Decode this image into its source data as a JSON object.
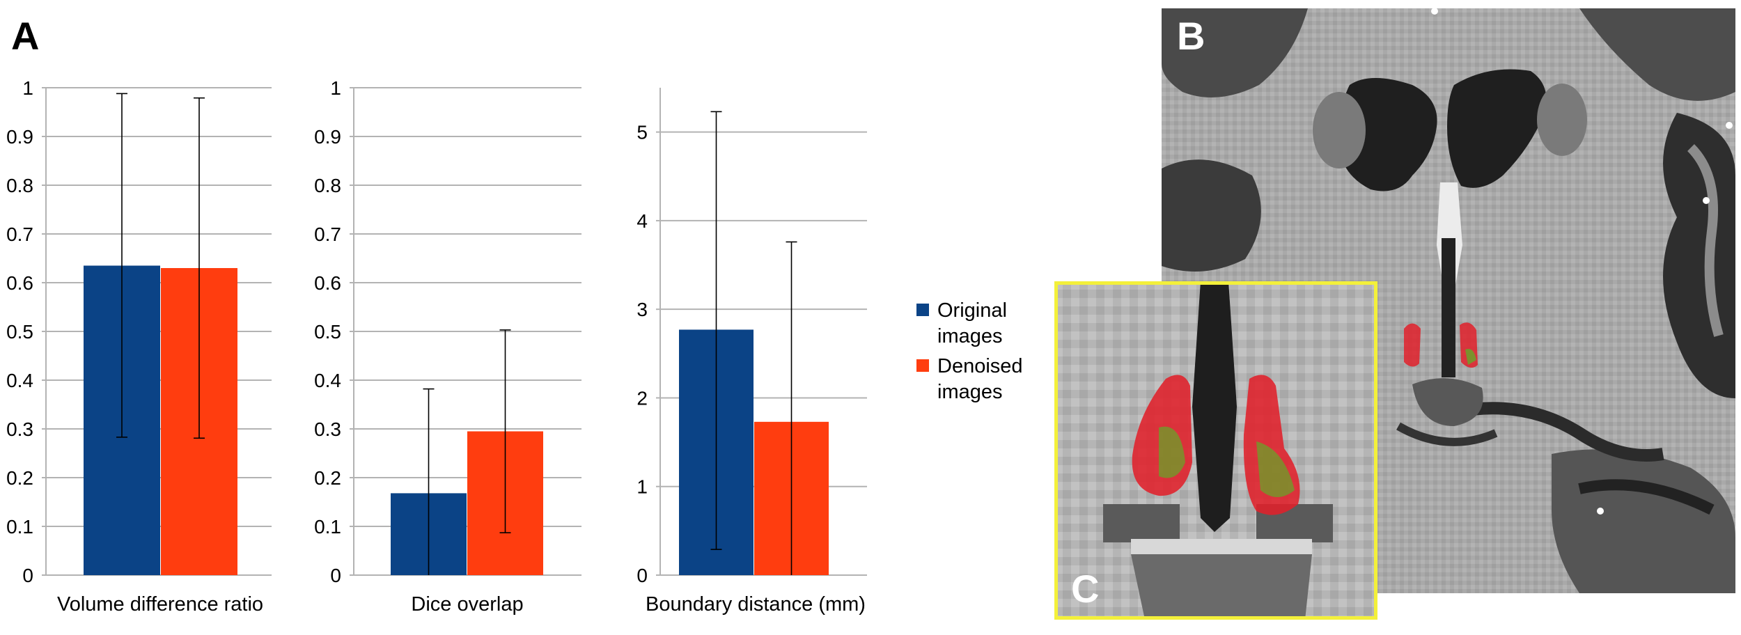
{
  "panels": {
    "a": "A",
    "b": "B",
    "c": "C"
  },
  "colors": {
    "original": "#0b4386",
    "denoised": "#ff3d0f",
    "grid": "#b3b3b3",
    "inset_border": "#f3f03a",
    "segmentation_red": "#e0202a",
    "segmentation_green": "#6aa22a"
  },
  "legend": [
    {
      "label": "Original images",
      "color": "#0b4386"
    },
    {
      "label": "Denoised images",
      "color": "#ff3d0f"
    }
  ],
  "chart_data": [
    {
      "type": "bar",
      "title": "",
      "xlabel": "Volume difference ratio",
      "ylabel": "",
      "ylim": [
        0,
        1
      ],
      "yticks": [
        "0",
        "0.1",
        "0.2",
        "0.3",
        "0.4",
        "0.5",
        "0.6",
        "0.7",
        "0.8",
        "0.9",
        "1"
      ],
      "grid": true,
      "series": [
        {
          "name": "Original images",
          "value": 0.635,
          "error_low": 0.283,
          "error_high": 0.988
        },
        {
          "name": "Denoised images",
          "value": 0.63,
          "error_low": 0.281,
          "error_high": 0.979
        }
      ]
    },
    {
      "type": "bar",
      "title": "",
      "xlabel": "Dice overlap",
      "ylabel": "",
      "ylim": [
        0,
        1
      ],
      "yticks": [
        "0",
        "0.1",
        "0.2",
        "0.3",
        "0.4",
        "0.5",
        "0.6",
        "0.7",
        "0.8",
        "0.9",
        "1"
      ],
      "grid": true,
      "series": [
        {
          "name": "Original images",
          "value": 0.168,
          "error_low": 0,
          "error_high": 0.382
        },
        {
          "name": "Denoised images",
          "value": 0.295,
          "error_low": 0.087,
          "error_high": 0.503
        }
      ]
    },
    {
      "type": "bar",
      "title": "",
      "xlabel": "Boundary distance (mm)",
      "ylabel": "",
      "ylim": [
        0,
        5.5
      ],
      "yticks": [
        "0",
        "1",
        "2",
        "3",
        "4",
        "5"
      ],
      "grid": true,
      "series": [
        {
          "name": "Original images",
          "value": 2.77,
          "error_low": 0.29,
          "error_high": 5.23
        },
        {
          "name": "Denoised images",
          "value": 1.73,
          "error_low": 0,
          "error_high": 3.76
        }
      ]
    }
  ]
}
